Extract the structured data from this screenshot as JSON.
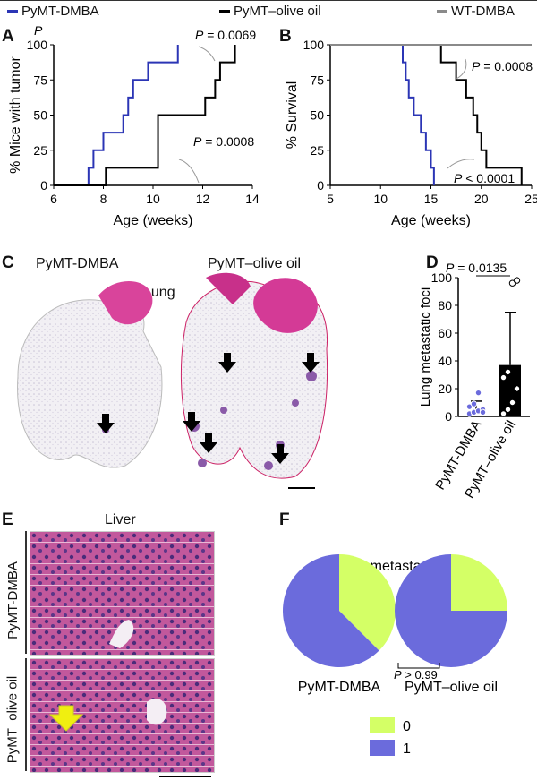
{
  "legend": [
    {
      "label": "PyMT-DMBA",
      "color": "#2b35b5"
    },
    {
      "label": "PyMT–olive oil",
      "color": "#000000"
    },
    {
      "label": "WT-DMBA",
      "color": "#8a8a8a"
    }
  ],
  "panels": {
    "A": "A",
    "B": "B",
    "C": "C",
    "D": "D",
    "E": "E",
    "F": "F"
  },
  "panel_c": {
    "left_label": "PyMT-DMBA",
    "right_label": "PyMT–olive oil",
    "organ": "Lung"
  },
  "panel_e": {
    "title": "Liver",
    "row1": "PyMT-DMBA",
    "row2": "PyMT–olive oil"
  },
  "annotations": {
    "A_p1": "= 0.0069",
    "A_p2": "= 0.0008",
    "B_p1": "= 0.0008",
    "B_p2": "< 0.0001",
    "D_p": "= 0.0135",
    "F_p": "> 0.99",
    "P": "P"
  },
  "colors": {
    "dmba": "#2b35b5",
    "oil": "#000000",
    "wt": "#8a8a8a",
    "pie0": "#d4ff66",
    "pie1": "#6b6bdc"
  },
  "chart_data": [
    {
      "id": "A",
      "type": "line",
      "xlabel": "Age (weeks)",
      "ylabel": "% Mice with tumor",
      "xlim": [
        6,
        14
      ],
      "ylim": [
        0,
        100
      ],
      "xticks": [
        6,
        8,
        10,
        12,
        14
      ],
      "yticks": [
        0,
        25,
        50,
        75,
        100
      ],
      "series": [
        {
          "name": "PyMT-DMBA",
          "x": [
            6,
            7.4,
            7.4,
            7.6,
            7.6,
            8,
            8,
            8.8,
            8.8,
            9,
            9,
            9.2,
            9.2,
            9.8,
            9.8,
            11,
            11
          ],
          "y": [
            0,
            0,
            12.5,
            12.5,
            25,
            25,
            37.5,
            37.5,
            50,
            50,
            62.5,
            62.5,
            75,
            75,
            87.5,
            87.5,
            100
          ]
        },
        {
          "name": "PyMT–olive oil",
          "x": [
            6,
            8.1,
            8.1,
            10.2,
            10.2,
            12.1,
            12.1,
            12.5,
            12.5,
            12.7,
            12.7,
            13.3,
            13.3
          ],
          "y": [
            0,
            0,
            12.5,
            12.5,
            50,
            50,
            62.5,
            62.5,
            75,
            75,
            87.5,
            87.5,
            100
          ]
        }
      ]
    },
    {
      "id": "B",
      "type": "line",
      "xlabel": "Age (weeks)",
      "ylabel": "% Survival",
      "xlim": [
        5,
        25
      ],
      "ylim": [
        0,
        100
      ],
      "xticks": [
        5,
        10,
        15,
        20,
        25
      ],
      "yticks": [
        0,
        25,
        50,
        75,
        100
      ],
      "series": [
        {
          "name": "PyMT-DMBA",
          "x": [
            5,
            12.2,
            12.2,
            12.5,
            12.5,
            12.8,
            12.8,
            13.3,
            13.3,
            14,
            14,
            14.5,
            14.5,
            15,
            15,
            15.3,
            15.3
          ],
          "y": [
            100,
            100,
            87.5,
            87.5,
            75,
            75,
            62.5,
            62.5,
            50,
            50,
            37.5,
            37.5,
            25,
            25,
            12.5,
            12.5,
            0
          ]
        },
        {
          "name": "PyMT–olive oil",
          "x": [
            5,
            16,
            16,
            17.5,
            17.5,
            18.5,
            18.5,
            19.2,
            19.2,
            19.6,
            19.6,
            20,
            20,
            20.5,
            20.5,
            24,
            24
          ],
          "y": [
            100,
            100,
            87.5,
            87.5,
            75,
            75,
            62.5,
            62.5,
            50,
            50,
            37.5,
            37.5,
            25,
            25,
            12.5,
            12.5,
            0
          ]
        },
        {
          "name": "WT-DMBA",
          "x": [
            5,
            25
          ],
          "y": [
            100,
            100
          ]
        }
      ]
    },
    {
      "id": "D",
      "type": "bar",
      "ylabel": "Lung metastatic foci",
      "ylim": [
        0,
        100
      ],
      "yticks": [
        0,
        20,
        40,
        60,
        80,
        100
      ],
      "categories": [
        "PyMT-DMBA",
        "PyMT–olive oil"
      ],
      "values": [
        5,
        37
      ],
      "errors": [
        6,
        38
      ],
      "points": [
        [
          2,
          3,
          4,
          5,
          7,
          9,
          17,
          3
        ],
        [
          2,
          5,
          10,
          20,
          28,
          32,
          96,
          98
        ]
      ]
    },
    {
      "id": "F",
      "type": "pie",
      "title": "Liver metastasis grade",
      "pies": [
        {
          "name": "PyMT-DMBA",
          "values": [
            {
              "label": "0",
              "value": 37.5
            },
            {
              "label": "1",
              "value": 62.5
            }
          ]
        },
        {
          "name": "PyMT–olive oil",
          "values": [
            {
              "label": "0",
              "value": 25
            },
            {
              "label": "1",
              "value": 75
            }
          ]
        }
      ],
      "legend": [
        "0",
        "1"
      ]
    }
  ]
}
